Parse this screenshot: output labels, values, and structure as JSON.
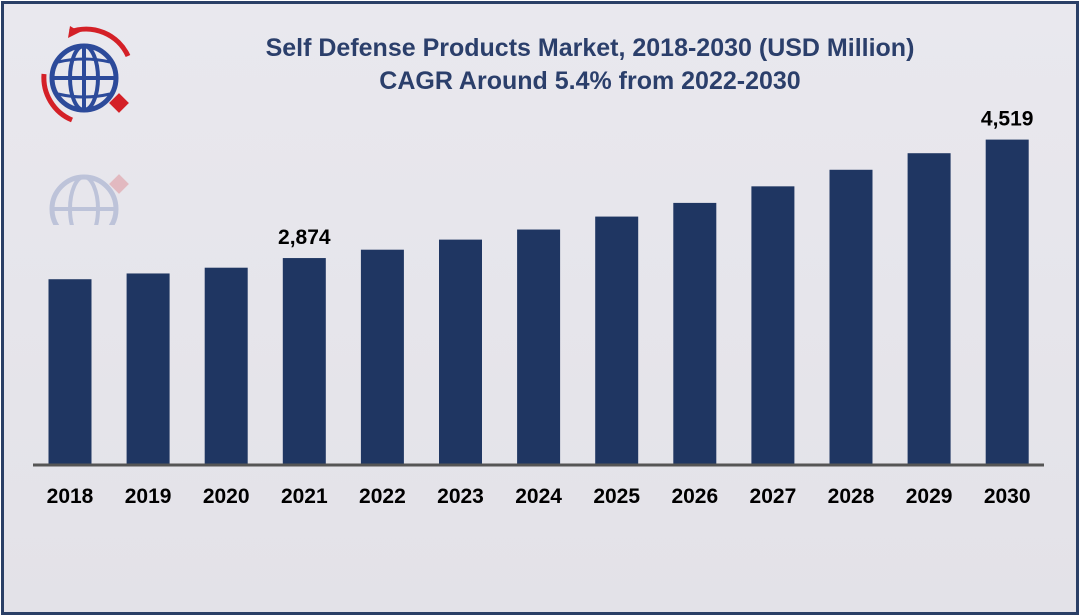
{
  "chart_data": {
    "type": "bar",
    "title": "Self Defense Products Market, 2018-2030 (USD Million)",
    "subtitle": "CAGR Around 5.4% from 2022-2030",
    "categories": [
      "2018",
      "2019",
      "2020",
      "2021",
      "2022",
      "2023",
      "2024",
      "2025",
      "2026",
      "2027",
      "2028",
      "2029",
      "2030"
    ],
    "values": [
      2580,
      2660,
      2740,
      2874,
      2990,
      3130,
      3270,
      3450,
      3640,
      3870,
      4100,
      4330,
      4519
    ],
    "data_labels": [
      {
        "category": "2021",
        "text": "2,874"
      },
      {
        "category": "2030",
        "text": "4,519"
      }
    ],
    "xlabel": "",
    "ylabel": "",
    "ylim": [
      0,
      4819
    ],
    "grid": false,
    "legend": "none",
    "colors": {
      "bar": "#1f3662",
      "axis": "#555555",
      "title": "#2b3f6b",
      "label": "#000000",
      "logo_blue": "#2c4a9a",
      "logo_red": "#d42027"
    }
  },
  "logo": {
    "icon": "globe-logo-icon"
  }
}
